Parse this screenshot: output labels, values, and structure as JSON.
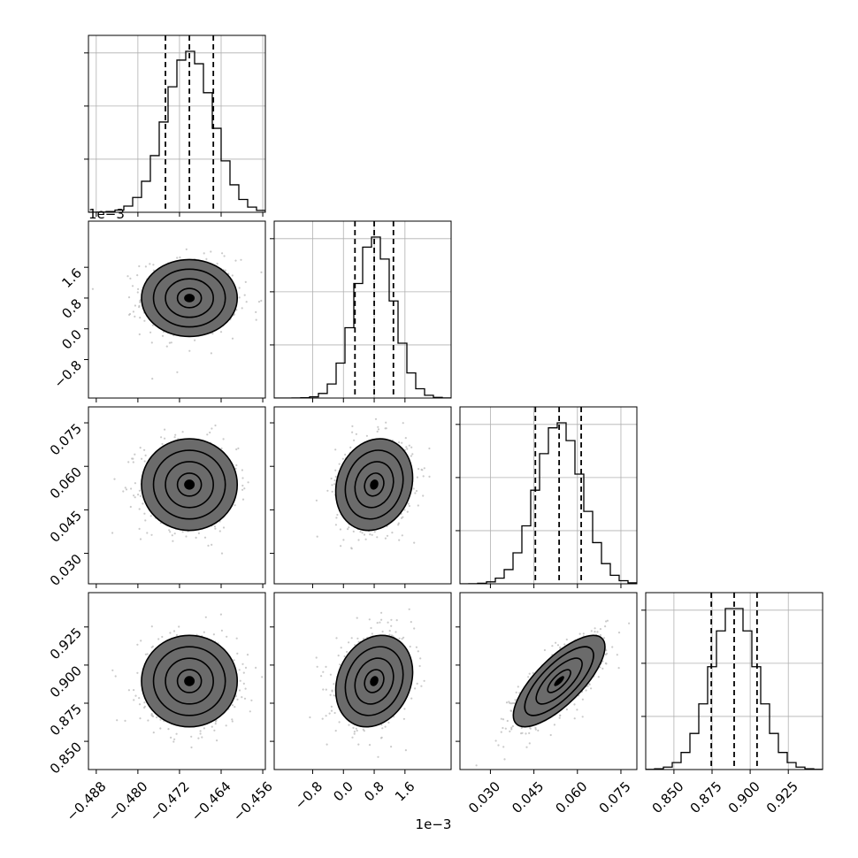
{
  "chart_data": {
    "type": "corner",
    "title": "",
    "parameters": [
      {
        "label": "",
        "range": [
          -0.4895,
          -0.4555
        ],
        "ticks": [
          -0.488,
          -0.48,
          -0.472,
          -0.464,
          -0.456
        ],
        "tick_labels": [
          "−0.488",
          "−0.480",
          "−0.472",
          "−0.464",
          "−0.456"
        ],
        "quantiles": [
          -0.4747,
          -0.4701,
          -0.4655
        ],
        "offset_text": ""
      },
      {
        "label": "",
        "range": [
          -1.8,
          2.8
        ],
        "ticks": [
          -0.8,
          0.0,
          0.8,
          1.6
        ],
        "tick_labels": [
          "−0.8",
          "0.0",
          "0.8",
          "1.6"
        ],
        "quantiles": [
          0.3,
          0.8,
          1.3
        ],
        "offset_text": "1e−3"
      },
      {
        "label": "",
        "range": [
          0.0195,
          0.0805
        ],
        "ticks": [
          0.03,
          0.045,
          0.06,
          0.075
        ],
        "tick_labels": [
          "0.030",
          "0.045",
          "0.060",
          "0.075"
        ],
        "quantiles": [
          0.0455,
          0.0537,
          0.0613
        ],
        "offset_text": ""
      },
      {
        "label": "",
        "range": [
          0.8315,
          0.9475
        ],
        "ticks": [
          0.85,
          0.875,
          0.9,
          0.925
        ],
        "tick_labels": [
          "0.850",
          "0.875",
          "0.900",
          "0.925"
        ],
        "quantiles": [
          0.8745,
          0.8895,
          0.9045
        ],
        "offset_text": ""
      }
    ],
    "correlations": {
      "1-0": 0.0,
      "2-0": 0.0,
      "2-1": 0.15,
      "3-0": 0.0,
      "3-1": 0.2,
      "3-2": 0.75
    },
    "histogram_bins": 20,
    "contour_levels": [
      0.5,
      1.0,
      1.5,
      2.0
    ],
    "grid": true,
    "colors": {
      "line": "#000000",
      "scatter": "#bdbdbd",
      "grid": "#b0b0b0"
    }
  }
}
